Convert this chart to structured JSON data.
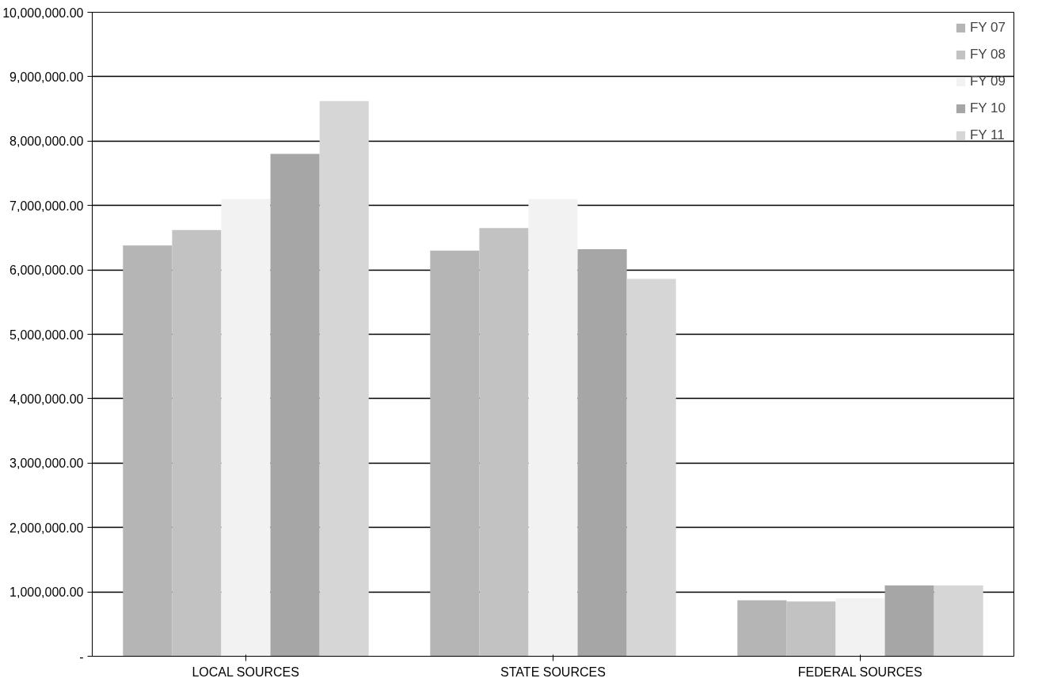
{
  "chart_data": {
    "type": "bar",
    "categories": [
      "LOCAL SOURCES",
      "STATE SOURCES",
      "FEDERAL SOURCES"
    ],
    "series": [
      {
        "name": "FY 07",
        "color": "#b5b5b5",
        "values": [
          6380000,
          6300000,
          870000
        ]
      },
      {
        "name": "FY 08",
        "color": "#c2c2c2",
        "values": [
          6620000,
          6650000,
          850000
        ]
      },
      {
        "name": "FY 09",
        "color": "#f2f2f2",
        "values": [
          7100000,
          7100000,
          900000
        ]
      },
      {
        "name": "FY 10",
        "color": "#a6a6a6",
        "values": [
          7800000,
          6320000,
          1100000
        ]
      },
      {
        "name": "FY 11",
        "color": "#d6d6d6",
        "values": [
          8620000,
          5860000,
          1100000
        ]
      }
    ],
    "ylim": [
      0,
      10000000
    ],
    "yticks": [
      {
        "value": 0,
        "label": "-"
      },
      {
        "value": 1000000,
        "label": "1,000,000.00"
      },
      {
        "value": 2000000,
        "label": "2,000,000.00"
      },
      {
        "value": 3000000,
        "label": "3,000,000.00"
      },
      {
        "value": 4000000,
        "label": "4,000,000.00"
      },
      {
        "value": 5000000,
        "label": "5,000,000.00"
      },
      {
        "value": 6000000,
        "label": "6,000,000.00"
      },
      {
        "value": 7000000,
        "label": "7,000,000.00"
      },
      {
        "value": 8000000,
        "label": "8,000,000.00"
      },
      {
        "value": 9000000,
        "label": "9,000,000.00"
      },
      {
        "value": 10000000,
        "label": "10,000,000.00"
      }
    ],
    "grid": "y",
    "legend": "top right"
  }
}
